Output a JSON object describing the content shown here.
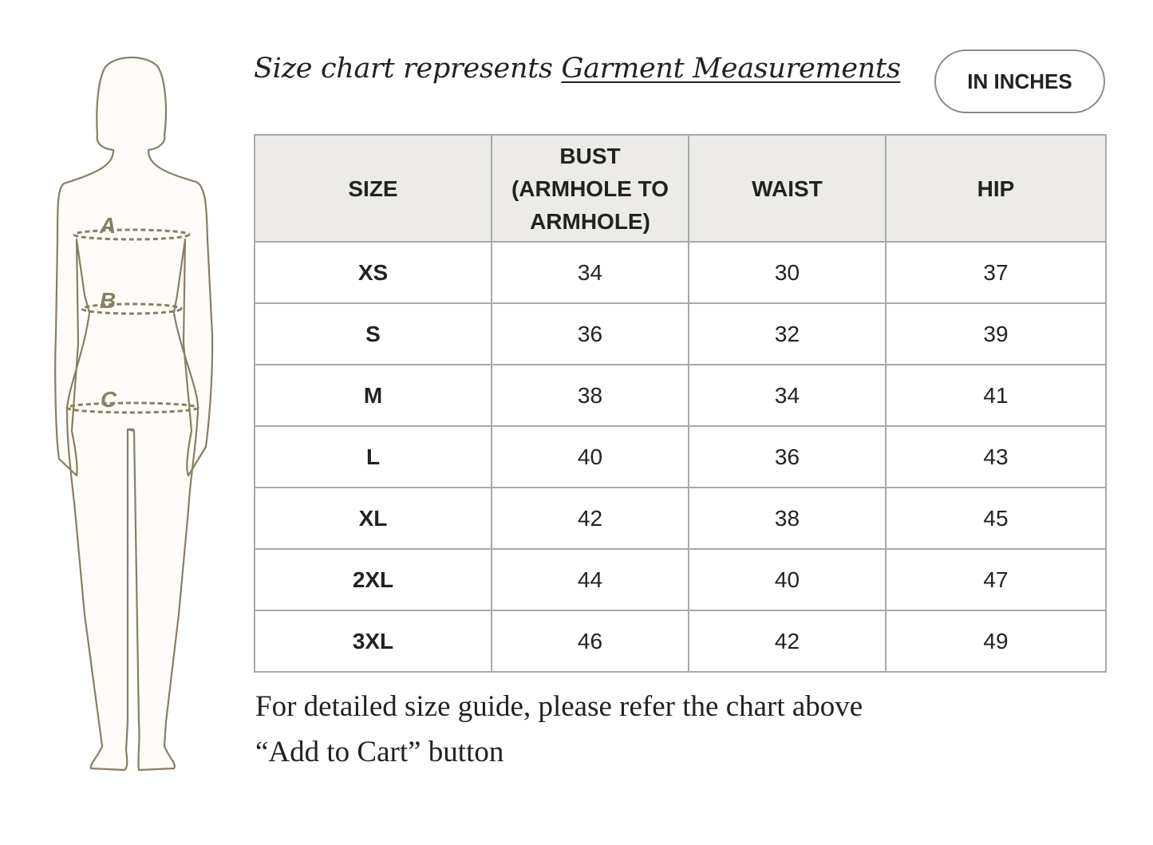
{
  "caption": {
    "prefix": "Size chart represents ",
    "link": "Garment Measurements"
  },
  "unit_toggle": {
    "label": "IN INCHES"
  },
  "figure": {
    "labels": [
      "A",
      "B",
      "C"
    ],
    "stroke_color": "#8a7d62"
  },
  "table": {
    "headers": [
      "SIZE",
      "BUST (ARMHOLE TO ARMHOLE)",
      "WAIST",
      "HIP"
    ],
    "rows": [
      [
        "XS",
        "34",
        "30",
        "37"
      ],
      [
        "S",
        "36",
        "32",
        "39"
      ],
      [
        "M",
        "38",
        "34",
        "41"
      ],
      [
        "L",
        "40",
        "36",
        "43"
      ],
      [
        "XL",
        "42",
        "38",
        "45"
      ],
      [
        "2XL",
        "44",
        "40",
        "47"
      ],
      [
        "3XL",
        "46",
        "42",
        "49"
      ]
    ]
  },
  "notes": [
    "For detailed size guide, please refer the chart above",
    "“Add to Cart” button"
  ]
}
